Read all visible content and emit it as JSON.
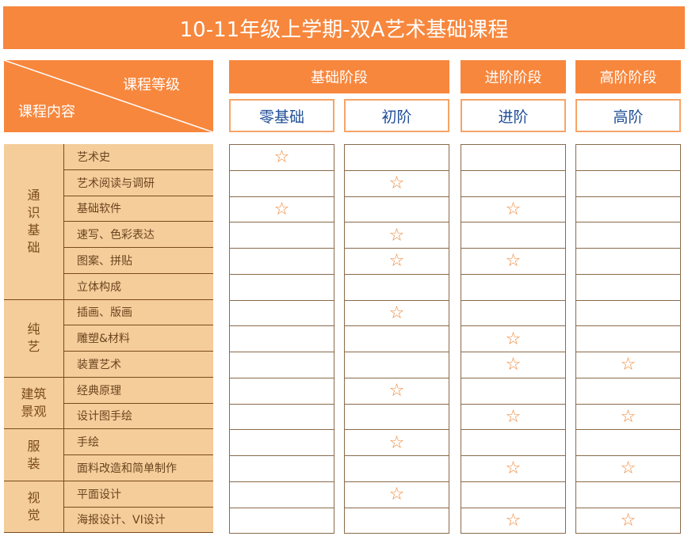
{
  "title": "10-11年级上学期-双A艺术基础课程",
  "corner": {
    "top_label": "课程等级",
    "bottom_label": "课程内容"
  },
  "stages": [
    {
      "label": "基础阶段",
      "span": 2
    },
    {
      "label": "进阶阶段",
      "span": 1
    },
    {
      "label": "高阶阶段",
      "span": 1
    }
  ],
  "levels": [
    "零基础",
    "初阶",
    "进阶",
    "高阶"
  ],
  "star_icon": "☆",
  "colors": {
    "header_orange": "#f7873d",
    "left_fill": "#f4cd9a",
    "level_text": "#1f4e96",
    "star": "#f08a3c"
  },
  "categories": [
    {
      "label": "通\n识\n基\n础",
      "rows": 6
    },
    {
      "label": "纯\n艺",
      "rows": 3
    },
    {
      "label": "建筑\n景观",
      "rows": 2
    },
    {
      "label": "服\n装",
      "rows": 2
    },
    {
      "label": "视\n觉",
      "rows": 2
    }
  ],
  "rows": [
    {
      "course": "艺术史",
      "stars": [
        1,
        0,
        0,
        0
      ]
    },
    {
      "course": "艺术阅读与调研",
      "stars": [
        0,
        1,
        0,
        0
      ]
    },
    {
      "course": "基础软件",
      "stars": [
        1,
        0,
        1,
        0
      ]
    },
    {
      "course": "速写、色彩表达",
      "stars": [
        0,
        1,
        0,
        0
      ]
    },
    {
      "course": "图案、拼贴",
      "stars": [
        0,
        1,
        1,
        0
      ]
    },
    {
      "course": "立体构成",
      "stars": [
        0,
        0,
        0,
        0
      ]
    },
    {
      "course": "插画、版画",
      "stars": [
        0,
        1,
        0,
        0
      ]
    },
    {
      "course": "雕塑&材料",
      "stars": [
        0,
        0,
        1,
        0
      ]
    },
    {
      "course": "装置艺术",
      "stars": [
        0,
        0,
        1,
        1
      ]
    },
    {
      "course": "经典原理",
      "stars": [
        0,
        1,
        0,
        0
      ]
    },
    {
      "course": "设计图手绘",
      "stars": [
        0,
        0,
        1,
        1
      ]
    },
    {
      "course": "手绘",
      "stars": [
        0,
        1,
        0,
        0
      ]
    },
    {
      "course": "面料改造和简单制作",
      "stars": [
        0,
        0,
        1,
        1
      ]
    },
    {
      "course": "平面设计",
      "stars": [
        0,
        1,
        0,
        0
      ]
    },
    {
      "course": "海报设计、VI设计",
      "stars": [
        0,
        0,
        1,
        1
      ]
    }
  ]
}
